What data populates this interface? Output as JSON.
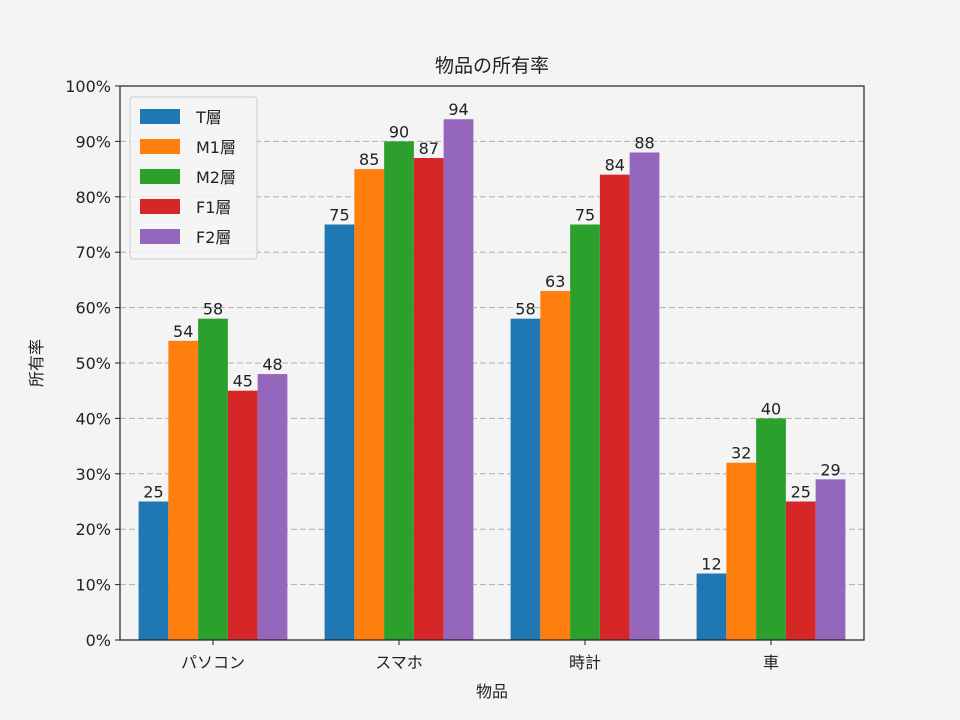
{
  "chart_data": {
    "type": "bar",
    "title": "物品の所有率",
    "xlabel": "物品",
    "ylabel": "所有率",
    "categories": [
      "パソコン",
      "スマホ",
      "時計",
      "車"
    ],
    "series": [
      {
        "name": "T層",
        "values": [
          25,
          75,
          58,
          12
        ],
        "color": "#1f77b4"
      },
      {
        "name": "M1層",
        "values": [
          54,
          85,
          63,
          32
        ],
        "color": "#ff7f0e"
      },
      {
        "name": "M2層",
        "values": [
          58,
          90,
          75,
          40
        ],
        "color": "#2ca02c"
      },
      {
        "name": "F1層",
        "values": [
          45,
          87,
          84,
          25
        ],
        "color": "#d62728"
      },
      {
        "name": "F2層",
        "values": [
          48,
          94,
          88,
          29
        ],
        "color": "#9467bd"
      }
    ],
    "ylim": [
      0,
      100
    ],
    "yticks": [
      "0%",
      "10%",
      "20%",
      "30%",
      "40%",
      "50%",
      "60%",
      "70%",
      "80%",
      "90%",
      "100%"
    ],
    "grid": "horizontal dashed",
    "legend_position": "top-left"
  }
}
